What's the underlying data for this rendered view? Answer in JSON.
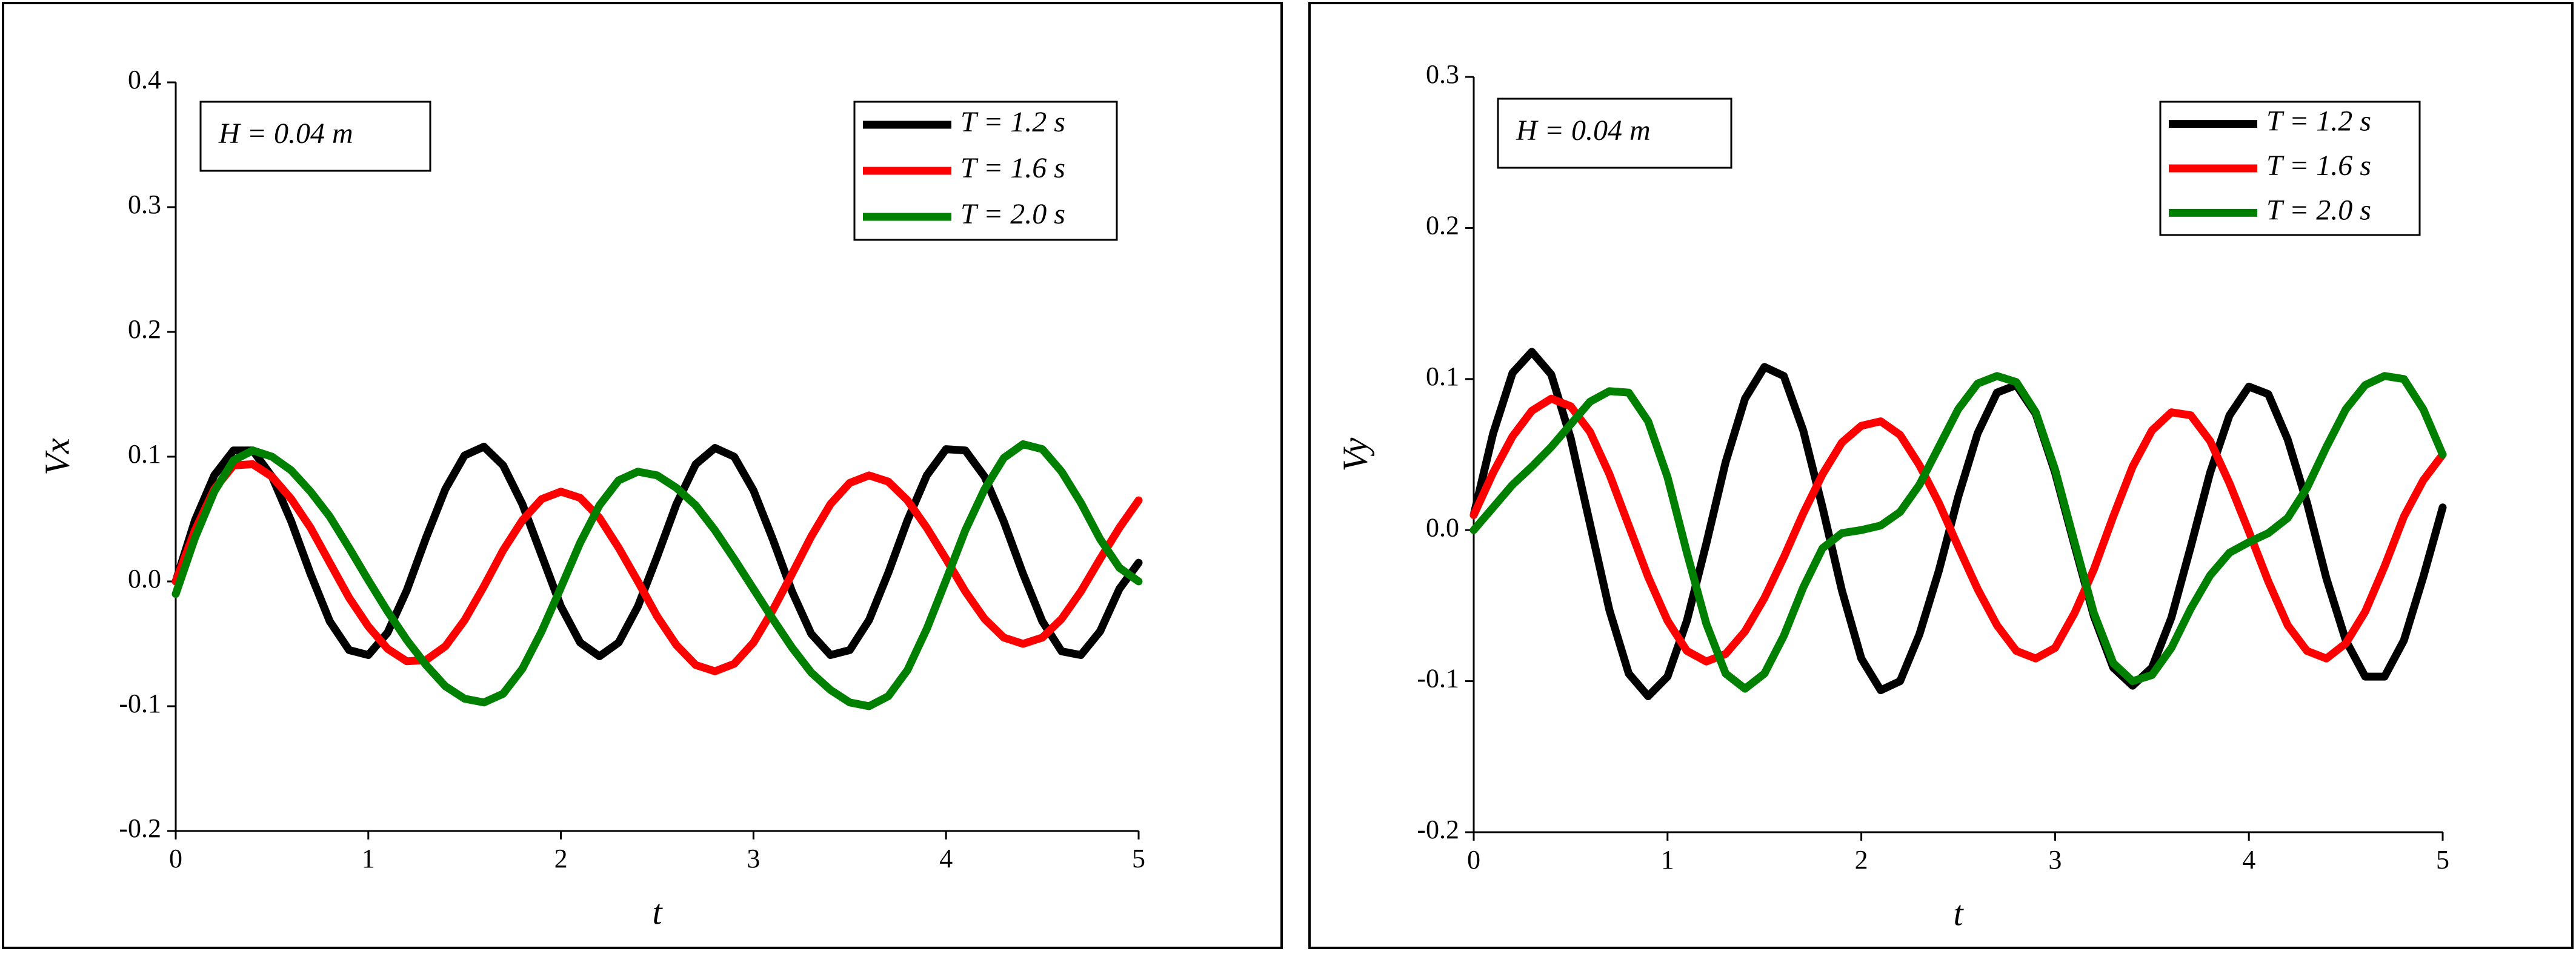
{
  "chart_data": [
    {
      "type": "line",
      "annotation": "H = 0.04 m",
      "xlabel": "t",
      "ylabel": "Vx",
      "legend": "upper right",
      "x": [
        0,
        0.1,
        0.2,
        0.3,
        0.4,
        0.5,
        0.6,
        0.7,
        0.8,
        0.9,
        1,
        1.1,
        1.2,
        1.3,
        1.4,
        1.5,
        1.6,
        1.7,
        1.8,
        1.9,
        2,
        2.1,
        2.2,
        2.3,
        2.4,
        2.5,
        2.6,
        2.7,
        2.8,
        2.9,
        3,
        3.1,
        3.2,
        3.3,
        3.4,
        3.5,
        3.6,
        3.7,
        3.8,
        3.9,
        4,
        4.1,
        4.2,
        4.3,
        4.4,
        4.5,
        4.6,
        4.7,
        4.8,
        4.9,
        5
      ],
      "xlim": [
        0,
        5
      ],
      "xticks": [
        0,
        1,
        2,
        3,
        4,
        5
      ],
      "ylim": [
        -0.2,
        0.4
      ],
      "yticks": [
        -0.2,
        -0.1,
        {
          "value": 0,
          "label": "0.0"
        },
        0.1,
        0.2,
        0.3,
        0.4
      ],
      "series": [
        {
          "name": "T = 1.2 s",
          "color": "#000000",
          "values": [
            0,
            0.049,
            0.085,
            0.105,
            0.105,
            0.084,
            0.048,
            0.006,
            -0.032,
            -0.055,
            -0.059,
            -0.041,
            -0.007,
            0.035,
            0.074,
            0.101,
            0.108,
            0.093,
            0.062,
            0.021,
            -0.02,
            -0.049,
            -0.06,
            -0.049,
            -0.02,
            0.02,
            0.062,
            0.094,
            0.107,
            0.1,
            0.073,
            0.034,
            -0.008,
            -0.042,
            -0.059,
            -0.055,
            -0.031,
            0.007,
            0.049,
            0.085,
            0.106,
            0.105,
            0.084,
            0.048,
            0.006,
            -0.032,
            -0.056,
            -0.059,
            -0.04,
            -0.006,
            0.015
          ]
        },
        {
          "name": "T = 1.6 s",
          "color": "#ff0000",
          "values": [
            0,
            0.041,
            0.074,
            0.093,
            0.094,
            0.084,
            0.066,
            0.043,
            0.015,
            -0.013,
            -0.036,
            -0.054,
            -0.064,
            -0.063,
            -0.052,
            -0.031,
            -0.004,
            0.025,
            0.049,
            0.066,
            0.072,
            0.067,
            0.051,
            0.027,
            0,
            -0.028,
            -0.051,
            -0.067,
            -0.072,
            -0.066,
            -0.049,
            -0.023,
            0.006,
            0.036,
            0.062,
            0.079,
            0.085,
            0.08,
            0.065,
            0.043,
            0.018,
            -0.008,
            -0.03,
            -0.045,
            -0.05,
            -0.045,
            -0.03,
            -0.008,
            0.018,
            0.043,
            0.065
          ]
        },
        {
          "name": "T = 2.0 s",
          "color": "#008000",
          "values": [
            -0.01,
            0.035,
            0.072,
            0.097,
            0.105,
            0.1,
            0.089,
            0.072,
            0.052,
            0.027,
            0.001,
            -0.024,
            -0.047,
            -0.067,
            -0.084,
            -0.094,
            -0.097,
            -0.09,
            -0.07,
            -0.04,
            -0.005,
            0.031,
            0.061,
            0.081,
            0.088,
            0.085,
            0.075,
            0.061,
            0.041,
            0.018,
            -0.006,
            -0.03,
            -0.053,
            -0.073,
            -0.087,
            -0.097,
            -0.1,
            -0.092,
            -0.071,
            -0.038,
            0.001,
            0.041,
            0.074,
            0.099,
            0.11,
            0.106,
            0.088,
            0.063,
            0.034,
            0.011,
            0
          ]
        }
      ]
    },
    {
      "type": "line",
      "annotation": "H = 0.04 m",
      "xlabel": "t",
      "ylabel": "Vy",
      "legend": "upper right",
      "x": [
        0,
        0.1,
        0.2,
        0.3,
        0.4,
        0.5,
        0.6,
        0.7,
        0.8,
        0.9,
        1,
        1.1,
        1.2,
        1.3,
        1.4,
        1.5,
        1.6,
        1.7,
        1.8,
        1.9,
        2,
        2.1,
        2.2,
        2.3,
        2.4,
        2.5,
        2.6,
        2.7,
        2.8,
        2.9,
        3,
        3.1,
        3.2,
        3.3,
        3.4,
        3.5,
        3.6,
        3.7,
        3.8,
        3.9,
        4,
        4.1,
        4.2,
        4.3,
        4.4,
        4.5,
        4.6,
        4.7,
        4.8,
        4.9,
        5
      ],
      "xlim": [
        0,
        5
      ],
      "xticks": [
        0,
        1,
        2,
        3,
        4,
        5
      ],
      "ylim": [
        -0.2,
        0.3
      ],
      "yticks": [
        -0.2,
        -0.1,
        {
          "value": 0,
          "label": "0.0"
        },
        0.1,
        0.2,
        0.3
      ],
      "series": [
        {
          "name": "T = 1.2 s",
          "color": "#000000",
          "values": [
            0.01,
            0.064,
            0.104,
            0.118,
            0.103,
            0.061,
            0.004,
            -0.053,
            -0.095,
            -0.11,
            -0.097,
            -0.06,
            -0.009,
            0.045,
            0.087,
            0.108,
            0.102,
            0.066,
            0.015,
            -0.04,
            -0.085,
            -0.106,
            -0.1,
            -0.069,
            -0.027,
            0.022,
            0.064,
            0.091,
            0.096,
            0.077,
            0.038,
            -0.01,
            -0.057,
            -0.091,
            -0.103,
            -0.091,
            -0.058,
            -0.011,
            0.038,
            0.076,
            0.095,
            0.09,
            0.06,
            0.018,
            -0.032,
            -0.073,
            -0.097,
            -0.097,
            -0.073,
            -0.031,
            0.015
          ]
        },
        {
          "name": "T = 1.6 s",
          "color": "#ff0000",
          "values": [
            0.01,
            0.038,
            0.062,
            0.079,
            0.087,
            0.082,
            0.065,
            0.037,
            0.003,
            -0.031,
            -0.06,
            -0.08,
            -0.087,
            -0.082,
            -0.067,
            -0.045,
            -0.018,
            0.011,
            0.037,
            0.058,
            0.069,
            0.072,
            0.063,
            0.043,
            0.018,
            -0.011,
            -0.039,
            -0.063,
            -0.08,
            -0.085,
            -0.078,
            -0.055,
            -0.026,
            0.009,
            0.042,
            0.066,
            0.078,
            0.076,
            0.059,
            0.031,
            -0.001,
            -0.034,
            -0.063,
            -0.08,
            -0.085,
            -0.075,
            -0.054,
            -0.024,
            0.009,
            0.033,
            0.05
          ]
        },
        {
          "name": "T = 2.0 s",
          "color": "#008000",
          "values": [
            0,
            0.015,
            0.03,
            0.042,
            0.055,
            0.07,
            0.085,
            0.092,
            0.091,
            0.072,
            0.035,
            -0.015,
            -0.062,
            -0.095,
            -0.105,
            -0.095,
            -0.07,
            -0.038,
            -0.012,
            -0.002,
            0,
            0.003,
            0.012,
            0.03,
            0.055,
            0.08,
            0.097,
            0.102,
            0.098,
            0.078,
            0.04,
            -0.008,
            -0.055,
            -0.088,
            -0.1,
            -0.096,
            -0.078,
            -0.052,
            -0.03,
            -0.015,
            -0.008,
            -0.002,
            0.008,
            0.028,
            0.055,
            0.08,
            0.096,
            0.102,
            0.1,
            0.08,
            0.05
          ]
        }
      ]
    }
  ]
}
